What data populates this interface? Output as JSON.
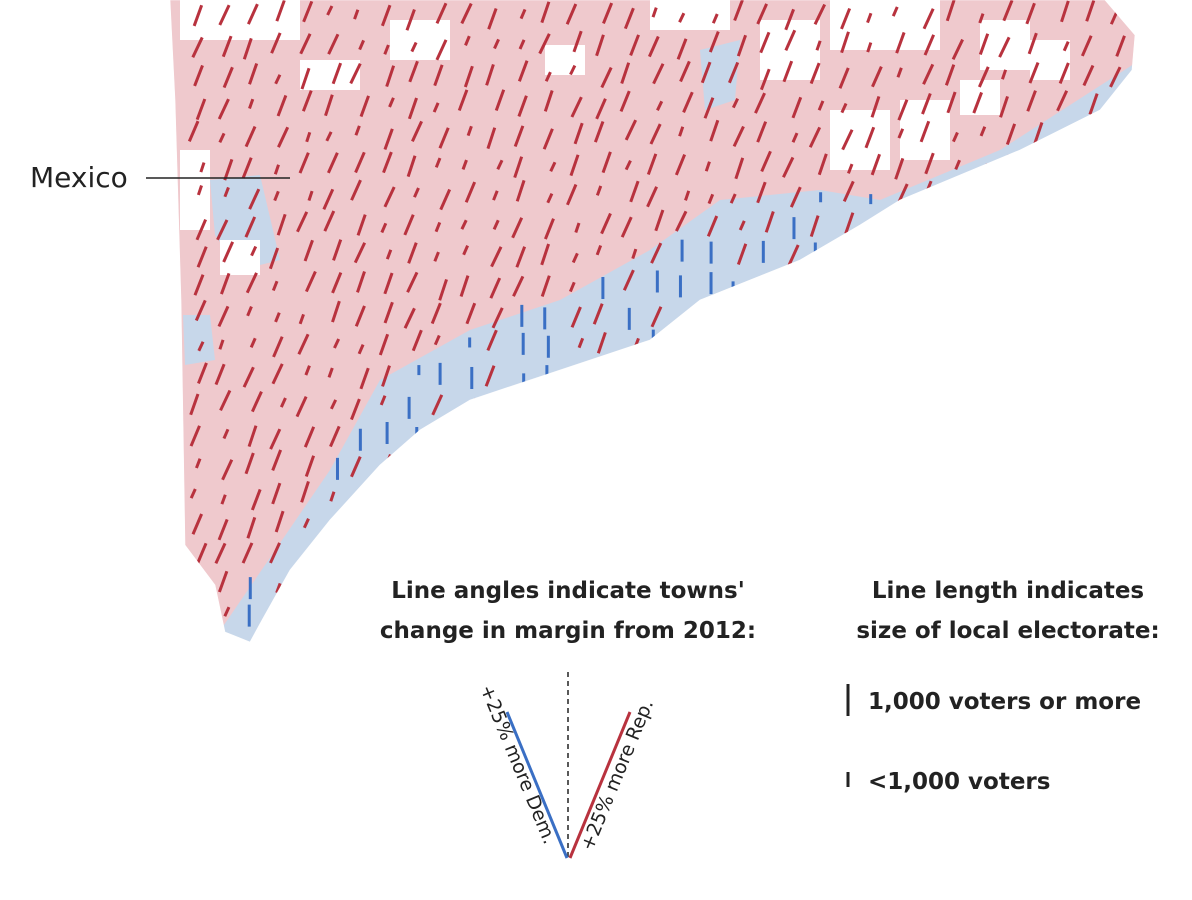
{
  "map": {
    "place_labels": [
      "Mexico"
    ]
  },
  "legend": {
    "angle": {
      "title_lines": [
        "Line angles indicate towns'",
        "change in margin from 2012:"
      ],
      "dem_label": "+25% more Dem.",
      "rep_label": "+25% more Rep."
    },
    "length": {
      "title_lines": [
        "Line length indicates",
        "size of local electorate:"
      ],
      "items": [
        "1,000 voters or more",
        "<1,000 voters"
      ]
    }
  }
}
